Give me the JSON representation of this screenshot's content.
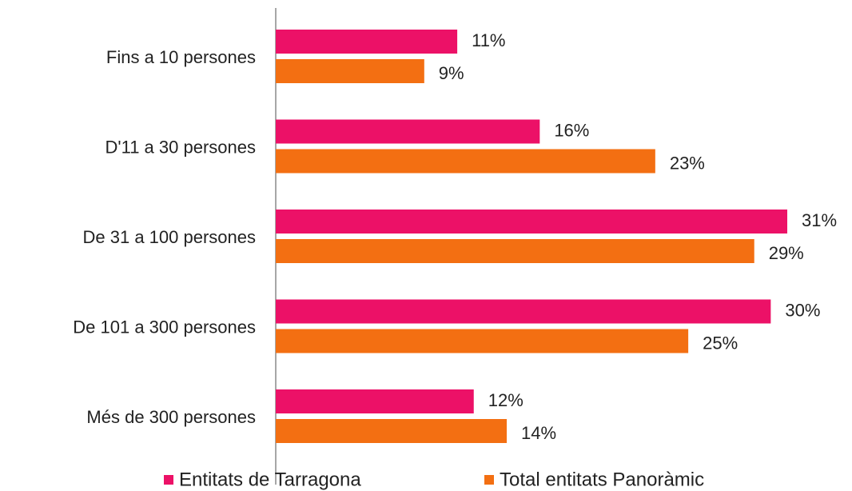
{
  "chart_data": {
    "type": "bar",
    "orientation": "horizontal",
    "categories": [
      "Fins a 10 persones",
      "D'11 a 30 persones",
      "De 31 a 100 persones",
      "De 101 a 300 persones",
      "Més de 300 persones"
    ],
    "series": [
      {
        "name": "Entitats de Tarragona",
        "color": "#ec1167",
        "values": [
          11,
          16,
          31,
          30,
          12
        ],
        "value_labels": [
          "11%",
          "16%",
          "31%",
          "30%",
          "12%"
        ]
      },
      {
        "name": "Total entitats Panoràmic",
        "color": "#f36f12",
        "values": [
          9,
          23,
          29,
          25,
          14
        ],
        "value_labels": [
          "9%",
          "23%",
          "29%",
          "25%",
          "14%"
        ]
      }
    ],
    "legend": "bottom"
  }
}
